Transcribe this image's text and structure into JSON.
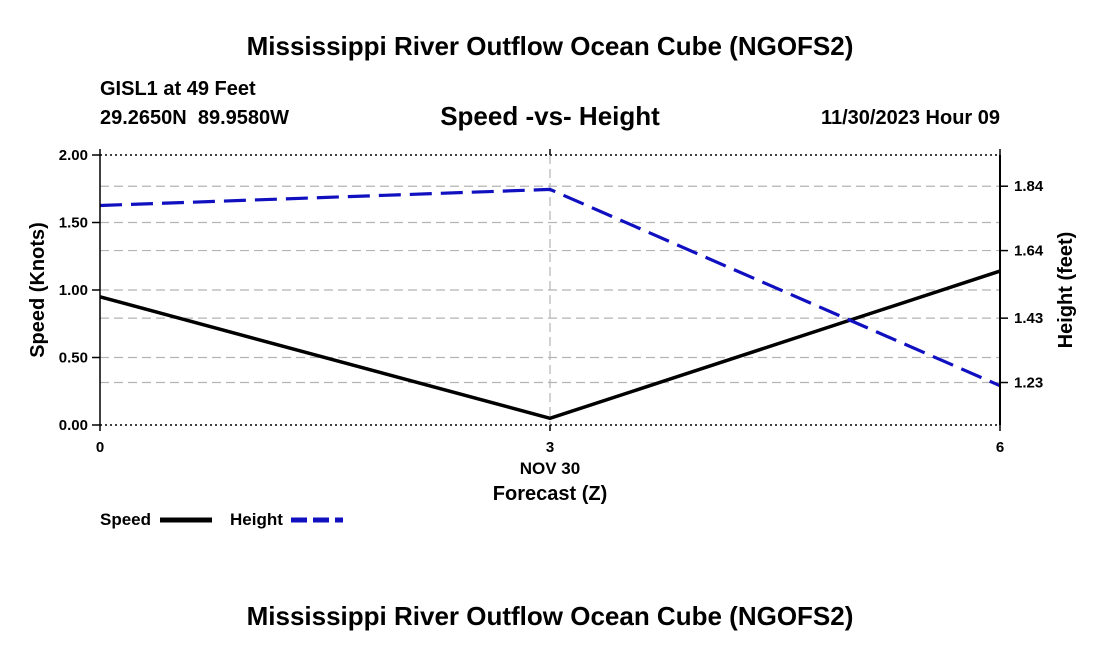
{
  "page": {
    "top_title": "Mississippi River Outflow Ocean Cube (NGOFS2)",
    "bottom_title": "Mississippi River Outflow Ocean Cube (NGOFS2)",
    "station": "GISL1 at 49 Feet",
    "coords": "29.2650N  89.9580W",
    "datetime": "11/30/2023 Hour 09"
  },
  "chart_data": {
    "type": "line",
    "title": "Speed -vs- Height",
    "xlabel": "Forecast (Z)",
    "x_date_label": "NOV 30",
    "ylabel": "Speed (Knots)",
    "y2label": "Height (feet)",
    "x": [
      0,
      3,
      6
    ],
    "x_ticks": [
      "0",
      "3",
      "6"
    ],
    "xlim": [
      0,
      6
    ],
    "ylim": [
      0,
      2.0
    ],
    "y_ticks": [
      "0.00",
      "0.50",
      "1.00",
      "1.50",
      "2.00"
    ],
    "y2lim": [
      1.098,
      1.937
    ],
    "y2_ticks": [
      "1.23",
      "1.43",
      "1.64",
      "1.84"
    ],
    "grid": true,
    "legend": "bottom-left",
    "colors": {
      "speed": "#000000",
      "height": "#1010c0",
      "grid": "#b4b4b4"
    },
    "series": [
      {
        "name": "Speed",
        "axis": "left",
        "style": "solid",
        "values": [
          0.95,
          0.05,
          1.14
        ]
      },
      {
        "name": "Height",
        "axis": "right",
        "style": "dashed",
        "values": [
          1.78,
          1.83,
          1.22
        ]
      }
    ]
  }
}
